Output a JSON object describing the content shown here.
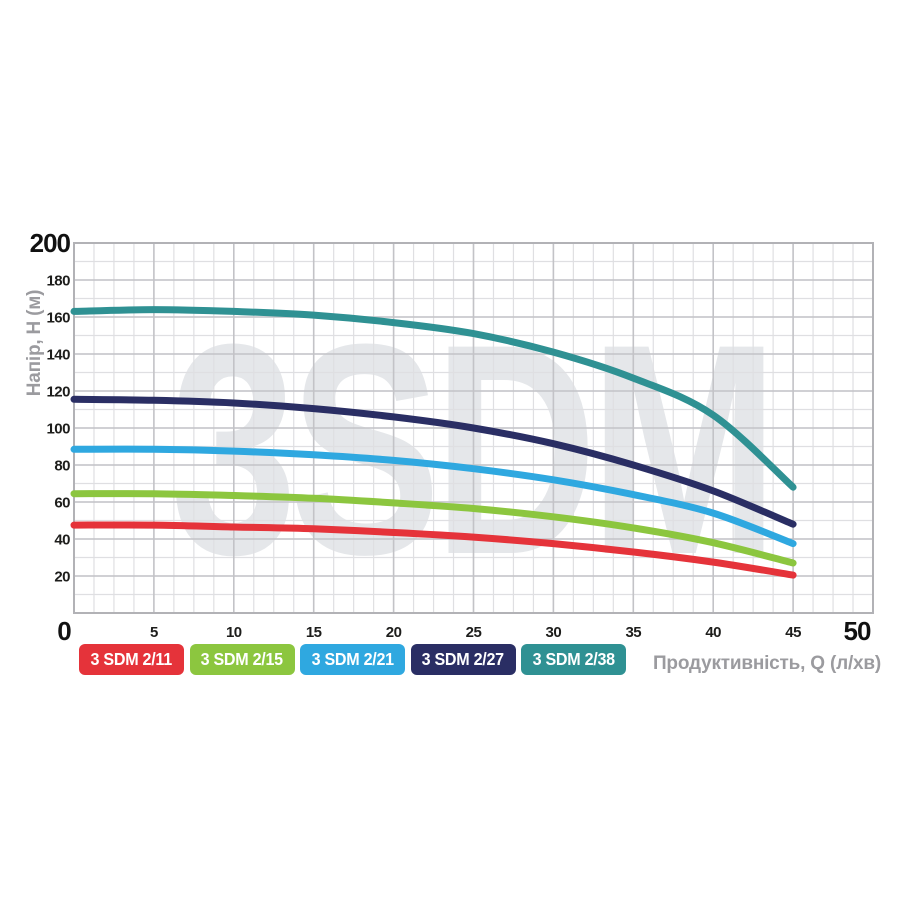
{
  "page": {
    "background_color": "#ffffff"
  },
  "chart_data": {
    "type": "line",
    "title": "",
    "watermark": "3SDM",
    "xlabel": "Продуктивність, Q (л/хв)",
    "ylabel": "Напір, H (м)",
    "xlim": [
      0,
      50
    ],
    "ylim": [
      0,
      200
    ],
    "xticks": [
      0,
      5,
      10,
      15,
      20,
      25,
      30,
      35,
      40,
      45,
      50
    ],
    "yticks": [
      0,
      20,
      40,
      60,
      80,
      100,
      120,
      140,
      160,
      180,
      200
    ],
    "x_minor_step": 1.25,
    "y_minor_step": 10,
    "grid": true,
    "legend_position": "bottom",
    "emphasized_ticks": {
      "x": [
        0,
        50
      ],
      "y": [
        200
      ]
    },
    "x": [
      0,
      5,
      10,
      15,
      20,
      25,
      30,
      35,
      40,
      45
    ],
    "series": [
      {
        "name": "3 SDM 2/11",
        "color": "#e5333a",
        "values": [
          47.5,
          47.5,
          46.5,
          45.5,
          43.5,
          41,
          37.5,
          33,
          27.5,
          20.5
        ]
      },
      {
        "name": "3 SDM 2/15",
        "color": "#8cc63f",
        "values": [
          64.5,
          64.5,
          63.5,
          62,
          59.5,
          56.5,
          52,
          46,
          38,
          27
        ]
      },
      {
        "name": "3 SDM 2/21",
        "color": "#2fa8e0",
        "values": [
          88.5,
          88.5,
          87.5,
          85.5,
          82.5,
          78,
          72,
          64,
          54,
          37.5
        ]
      },
      {
        "name": "3 SDM 2/27",
        "color": "#2a2e64",
        "values": [
          115.5,
          115,
          113.5,
          110.5,
          106,
          100,
          91.5,
          80,
          66,
          48
        ]
      },
      {
        "name": "3 SDM 2/38",
        "color": "#2f9193",
        "values": [
          163,
          164,
          163,
          161,
          157,
          151,
          141,
          127,
          107,
          68
        ]
      }
    ],
    "grid_colors": {
      "minor": "#dfdfe2",
      "major": "#c3c3c7",
      "border": "#b2b2b6"
    }
  }
}
